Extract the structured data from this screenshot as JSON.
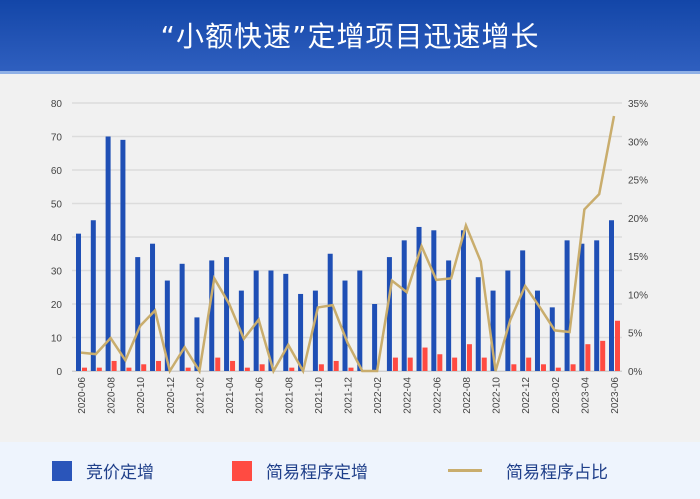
{
  "header": {
    "title": "“小额快速”定增项目迅速增长"
  },
  "legend": {
    "items": [
      {
        "label": "竞价定增",
        "color": "#2a55ba",
        "type": "bar"
      },
      {
        "label": "简易程序定增",
        "color": "#ff4b42",
        "type": "bar"
      },
      {
        "label": "简易程序占比",
        "color": "#c9ad6d",
        "type": "line"
      }
    ]
  },
  "chart_data": {
    "type": "bar",
    "title": "“小额快速”定增项目迅速增长",
    "xlabel": "",
    "ylabel": "",
    "ylim": [
      0,
      80
    ],
    "y2lim": [
      0,
      35
    ],
    "yticks": [
      0,
      10,
      20,
      30,
      40,
      50,
      60,
      70,
      80
    ],
    "y2ticks": [
      "0%",
      "5%",
      "10%",
      "15%",
      "20%",
      "25%",
      "30%",
      "35%"
    ],
    "grid": true,
    "legend_position": "bottom",
    "categories": [
      "2020-06",
      "2020-07",
      "2020-08",
      "2020-09",
      "2020-10",
      "2020-11",
      "2020-12",
      "2021-01",
      "2021-02",
      "2021-03",
      "2021-04",
      "2021-05",
      "2021-06",
      "2021-07",
      "2021-08",
      "2021-09",
      "2021-10",
      "2021-11",
      "2021-12",
      "2022-01",
      "2022-02",
      "2022-03",
      "2022-04",
      "2022-05",
      "2022-06",
      "2022-07",
      "2022-08",
      "2022-09",
      "2022-10",
      "2022-11",
      "2022-12",
      "2023-01",
      "2023-02",
      "2023-03",
      "2023-04",
      "2023-05",
      "2023-06"
    ],
    "xtick_labels": [
      "2020-06",
      "2020-08",
      "2020-10",
      "2020-12",
      "2021-02",
      "2021-04",
      "2021-06",
      "2021-08",
      "2021-10",
      "2021-12",
      "2022-02",
      "2022-04",
      "2022-06",
      "2022-08",
      "2022-10",
      "2022-12",
      "2023-02",
      "2023-04",
      "2023-06"
    ],
    "series": [
      {
        "name": "竞价定增",
        "type": "bar",
        "axis": "left",
        "values": [
          41,
          45,
          70,
          69,
          34,
          38,
          27,
          32,
          16,
          33,
          34,
          24,
          30,
          30,
          29,
          23,
          24,
          35,
          27,
          30,
          20,
          34,
          39,
          43,
          42,
          33,
          42,
          28,
          24,
          30,
          36,
          24,
          19,
          39,
          38,
          39,
          45
        ]
      },
      {
        "name": "简易程序定增",
        "type": "bar",
        "axis": "left",
        "values": [
          1,
          1,
          3,
          1,
          2,
          3,
          0,
          1,
          0,
          4,
          3,
          1,
          2,
          0,
          1,
          0,
          2,
          3,
          1,
          0,
          0,
          4,
          4,
          7,
          5,
          4,
          8,
          4,
          0,
          2,
          4,
          2,
          1,
          2,
          8,
          9,
          15
        ]
      },
      {
        "name": "简易程序占比",
        "type": "line",
        "axis": "right",
        "unit": "%",
        "values": [
          2.4,
          2.2,
          4.3,
          1.4,
          5.9,
          7.9,
          0,
          3.1,
          0,
          12.1,
          8.8,
          4.2,
          6.7,
          0,
          3.4,
          0,
          8.3,
          8.6,
          3.7,
          0,
          0,
          11.8,
          10.3,
          16.3,
          11.9,
          12.1,
          19.0,
          14.3,
          0,
          6.7,
          11.1,
          8.3,
          5.3,
          5.1,
          21.1,
          23.1,
          33.3
        ]
      }
    ]
  }
}
